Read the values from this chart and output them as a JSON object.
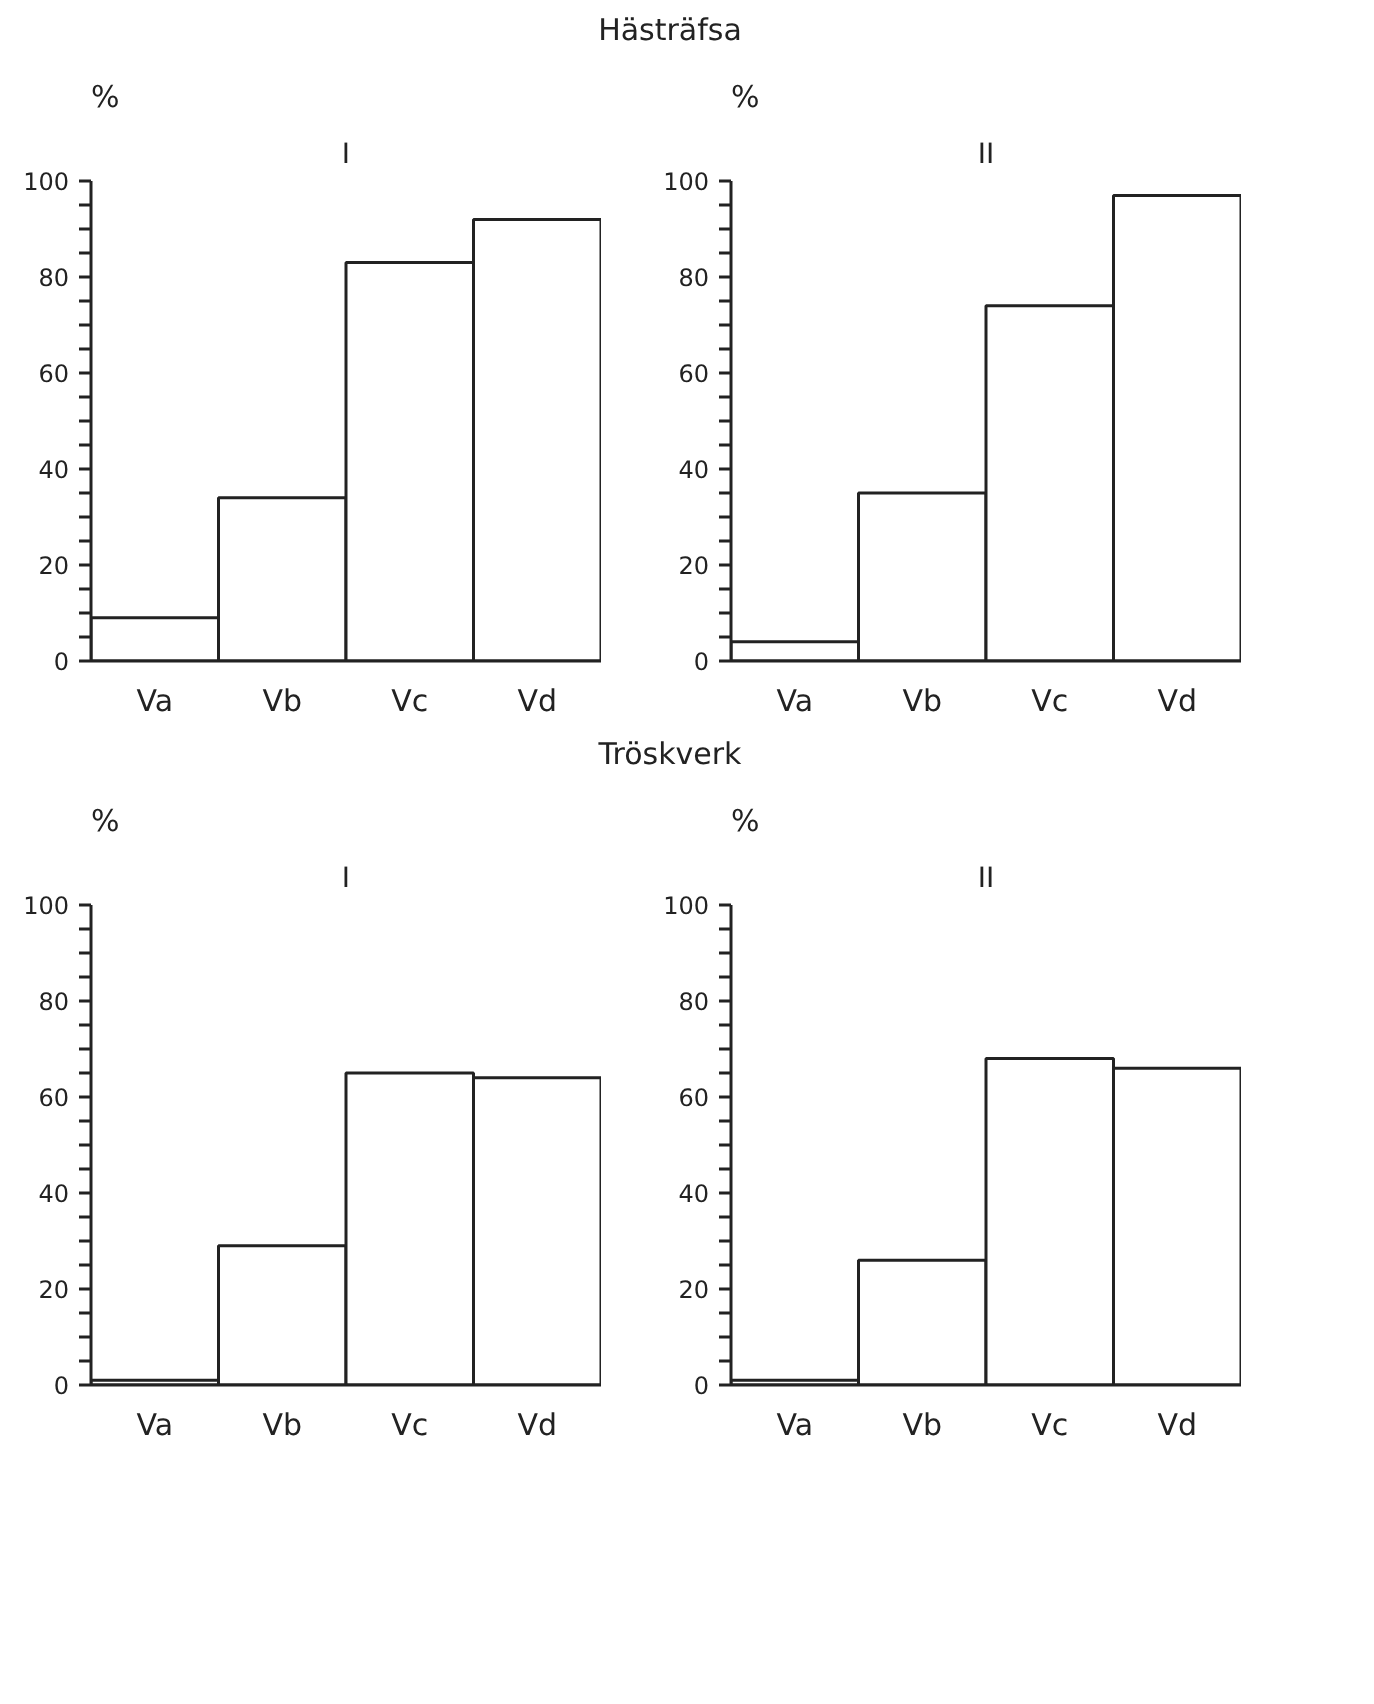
{
  "chart_data": [
    {
      "type": "bar",
      "title": "I",
      "ylabel": "%",
      "annotations": [
        "Hästräfsa"
      ],
      "categories": [
        "Va",
        "Vb",
        "Vc",
        "Vd"
      ],
      "values": [
        9,
        34,
        83,
        92
      ],
      "color": "#ffffff",
      "ylim": [
        0,
        100
      ],
      "yticks": [
        0,
        {
          "value": 5,
          "label": null
        },
        {
          "value": 10,
          "label": null
        },
        {
          "value": 15,
          "label": null
        },
        20,
        {
          "value": 25,
          "label": null
        },
        {
          "value": 30,
          "label": null
        },
        {
          "value": 35,
          "label": null
        },
        40,
        {
          "value": 45,
          "label": null
        },
        {
          "value": 50,
          "label": null
        },
        {
          "value": 55,
          "label": null
        },
        60,
        {
          "value": 65,
          "label": null
        },
        {
          "value": 70,
          "label": null
        },
        {
          "value": 75,
          "label": null
        },
        80,
        {
          "value": 85,
          "label": null
        },
        {
          "value": 90,
          "label": null
        },
        {
          "value": 95,
          "label": null
        },
        100
      ],
      "grid": false
    },
    {
      "type": "bar",
      "title": "II",
      "ylabel": "%",
      "categories": [
        "Va",
        "Vb",
        "Vc",
        "Vd"
      ],
      "values": [
        4,
        35,
        74,
        97
      ],
      "color": "#ffffff",
      "ylim": [
        0,
        100
      ],
      "yticks": [
        0,
        {
          "value": 5,
          "label": null
        },
        {
          "value": 10,
          "label": null
        },
        {
          "value": 15,
          "label": null
        },
        20,
        {
          "value": 25,
          "label": null
        },
        {
          "value": 30,
          "label": null
        },
        {
          "value": 35,
          "label": null
        },
        40,
        {
          "value": 45,
          "label": null
        },
        {
          "value": 50,
          "label": null
        },
        {
          "value": 55,
          "label": null
        },
        60,
        {
          "value": 65,
          "label": null
        },
        {
          "value": 70,
          "label": null
        },
        {
          "value": 75,
          "label": null
        },
        80,
        {
          "value": 85,
          "label": null
        },
        {
          "value": 90,
          "label": null
        },
        {
          "value": 95,
          "label": null
        },
        100
      ],
      "grid": false
    },
    {
      "type": "bar",
      "title": "I",
      "ylabel": "%",
      "annotations": [
        "Tröskverk"
      ],
      "categories": [
        "Va",
        "Vb",
        "Vc",
        "Vd"
      ],
      "values": [
        1,
        29,
        65,
        64
      ],
      "color": "#ffffff",
      "ylim": [
        0,
        100
      ],
      "yticks": [
        0,
        {
          "value": 5,
          "label": null
        },
        {
          "value": 10,
          "label": null
        },
        {
          "value": 15,
          "label": null
        },
        20,
        {
          "value": 25,
          "label": null
        },
        {
          "value": 30,
          "label": null
        },
        {
          "value": 35,
          "label": null
        },
        40,
        {
          "value": 45,
          "label": null
        },
        {
          "value": 50,
          "label": null
        },
        {
          "value": 55,
          "label": null
        },
        60,
        {
          "value": 65,
          "label": null
        },
        {
          "value": 70,
          "label": null
        },
        {
          "value": 75,
          "label": null
        },
        80,
        {
          "value": 85,
          "label": null
        },
        {
          "value": 90,
          "label": null
        },
        {
          "value": 95,
          "label": null
        },
        100
      ],
      "grid": false
    },
    {
      "type": "bar",
      "title": "II",
      "ylabel": "%",
      "categories": [
        "Va",
        "Vb",
        "Vc",
        "Vd"
      ],
      "values": [
        1,
        26,
        68,
        66
      ],
      "color": "#ffffff",
      "ylim": [
        0,
        100
      ],
      "yticks": [
        0,
        {
          "value": 5,
          "label": null
        },
        {
          "value": 10,
          "label": null
        },
        {
          "value": 15,
          "label": null
        },
        20,
        {
          "value": 25,
          "label": null
        },
        {
          "value": 30,
          "label": null
        },
        {
          "value": 35,
          "label": null
        },
        40,
        {
          "value": 45,
          "label": null
        },
        {
          "value": 50,
          "label": null
        },
        {
          "value": 55,
          "label": null
        },
        60,
        {
          "value": 65,
          "label": null
        },
        {
          "value": 70,
          "label": null
        },
        {
          "value": 75,
          "label": null
        },
        80,
        {
          "value": 85,
          "label": null
        },
        {
          "value": 90,
          "label": null
        },
        {
          "value": 95,
          "label": null
        },
        100
      ],
      "grid": false
    }
  ]
}
